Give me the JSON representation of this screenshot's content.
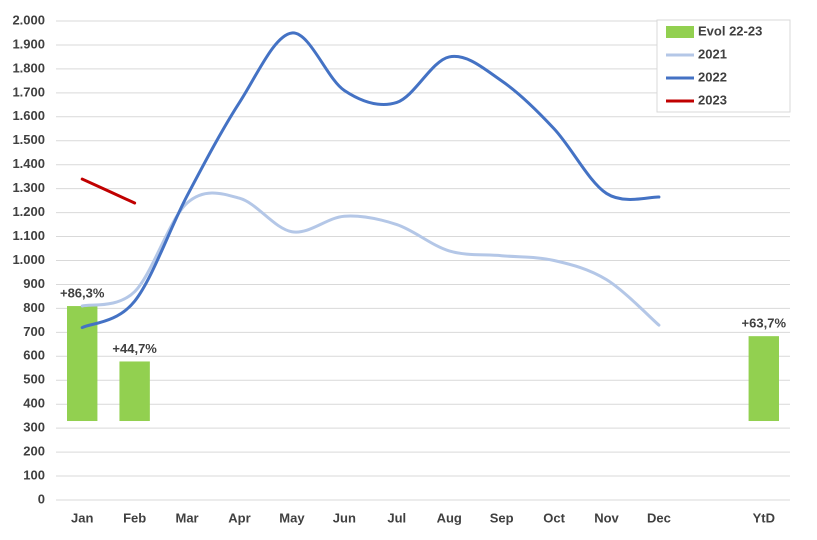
{
  "chart_data": {
    "type": "bar-line",
    "categories": [
      "Jan",
      "Feb",
      "Mar",
      "Apr",
      "May",
      "Jun",
      "Jul",
      "Aug",
      "Sep",
      "Oct",
      "Nov",
      "Dec",
      null,
      "YtD"
    ],
    "series": [
      {
        "name": "Evol 22-23",
        "type": "bar",
        "axis": "y2",
        "color": "#92d050",
        "values": [
          86.3,
          44.7,
          null,
          null,
          null,
          null,
          null,
          null,
          null,
          null,
          null,
          null,
          null,
          63.7
        ],
        "value_labels": [
          "+86,3%",
          "+44,7%",
          null,
          null,
          null,
          null,
          null,
          null,
          null,
          null,
          null,
          null,
          null,
          "+63,7%"
        ]
      },
      {
        "name": "2021",
        "type": "line",
        "color": "#b4c7e7",
        "values": [
          810,
          870,
          1240,
          1260,
          1120,
          1185,
          1150,
          1040,
          1020,
          1000,
          920,
          730,
          null,
          null
        ]
      },
      {
        "name": "2022",
        "type": "line",
        "color": "#4472c4",
        "values": [
          720,
          830,
          1270,
          1660,
          1950,
          1710,
          1660,
          1850,
          1750,
          1550,
          1280,
          1265,
          null,
          null
        ]
      },
      {
        "name": "2023",
        "type": "line",
        "color": "#c00000",
        "values": [
          1340,
          1240,
          null,
          null,
          null,
          null,
          null,
          null,
          null,
          null,
          null,
          null,
          null,
          null
        ]
      }
    ],
    "ylim": [
      0,
      2000
    ],
    "yticks": [
      0,
      100,
      200,
      300,
      400,
      500,
      600,
      700,
      800,
      900,
      {
        "value": 1000,
        "label": "1.000"
      },
      {
        "value": 1100,
        "label": "1.100"
      },
      {
        "value": 1200,
        "label": "1.200"
      },
      {
        "value": 1300,
        "label": "1.300"
      },
      {
        "value": 1400,
        "label": "1.400"
      },
      {
        "value": 1500,
        "label": "1.500"
      },
      {
        "value": 1600,
        "label": "1.600"
      },
      {
        "value": 1700,
        "label": "1.700"
      },
      {
        "value": 1800,
        "label": "1.800"
      },
      {
        "value": 1900,
        "label": "1.900"
      },
      {
        "value": 2000,
        "label": "2.000"
      }
    ],
    "y2lim": [
      -59.3,
      300.3
    ],
    "grid": true,
    "legend": "top-right"
  }
}
